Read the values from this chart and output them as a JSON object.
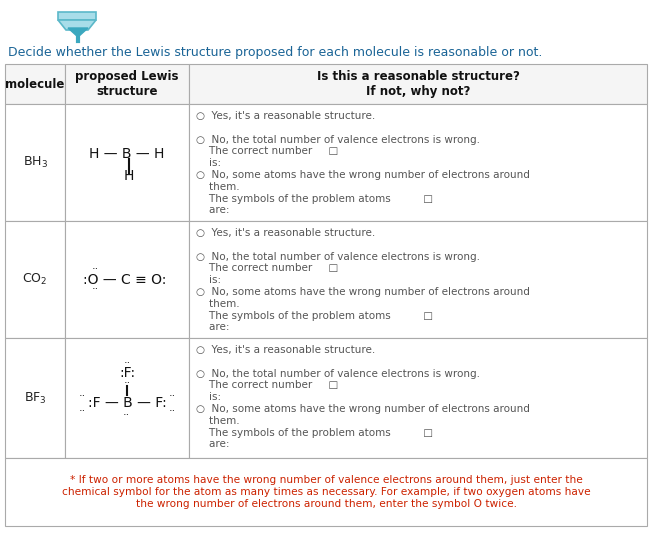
{
  "bg_color": "#ffffff",
  "title": "Decide whether the Lewis structure proposed for each molecule is reasonable or not.",
  "title_color": "#1a6496",
  "header_cols": [
    "molecule",
    "proposed Lewis\nstructure",
    "Is this a reasonable structure?\nIf not, why not?"
  ],
  "footer": "* If two or more atoms have the wrong number of valence electrons around them, just enter the\nchemical symbol for the atom as many times as necessary. For example, if two oxygen atoms have\nthe wrong number of electrons around them, enter the symbol O twice.",
  "footer_color": "#cc2200",
  "border_color": "#aaaaaa",
  "header_bg": "#f5f5f5",
  "cell_bg": "#ffffff",
  "footer_bg": "#ffffff",
  "gray_text": "#555555",
  "dark_text": "#111111",
  "red_text": "#cc2200",
  "option_lines": [
    [
      [
        "○  Yes, it's a reasonable structure.",
        "gray"
      ],
      [
        "",
        "gray"
      ],
      [
        "○  No, the total number of valence electrons is wrong.",
        "gray"
      ],
      [
        "    The correct number     □",
        "gray"
      ],
      [
        "    is:",
        "gray"
      ],
      [
        "○  No, some atoms have the wrong number of electrons around",
        "gray"
      ],
      [
        "    them.",
        "gray"
      ],
      [
        "    The symbols of the problem atoms          □",
        "gray"
      ],
      [
        "    are:",
        "gray"
      ]
    ],
    [
      [
        "○  Yes, it's a reasonable structure.",
        "gray"
      ],
      [
        "",
        "gray"
      ],
      [
        "○  No, the total number of valence electrons is wrong.",
        "gray"
      ],
      [
        "    The correct number     □",
        "gray"
      ],
      [
        "    is:",
        "gray"
      ],
      [
        "○  No, some atoms have the wrong number of electrons around",
        "gray"
      ],
      [
        "    them.",
        "gray"
      ],
      [
        "    The symbols of the problem atoms          □",
        "gray"
      ],
      [
        "    are:",
        "gray"
      ]
    ],
    [
      [
        "○  Yes, it's a reasonable structure.",
        "gray"
      ],
      [
        "",
        "gray"
      ],
      [
        "○  No, the total number of valence electrons is wrong.",
        "gray"
      ],
      [
        "    The correct number     □",
        "gray"
      ],
      [
        "    is:",
        "gray"
      ],
      [
        "○  No, some atoms have the wrong number of electrons around",
        "gray"
      ],
      [
        "    them.",
        "gray"
      ],
      [
        "    The symbols of the problem atoms          □",
        "gray"
      ],
      [
        "    are:",
        "gray"
      ]
    ]
  ]
}
